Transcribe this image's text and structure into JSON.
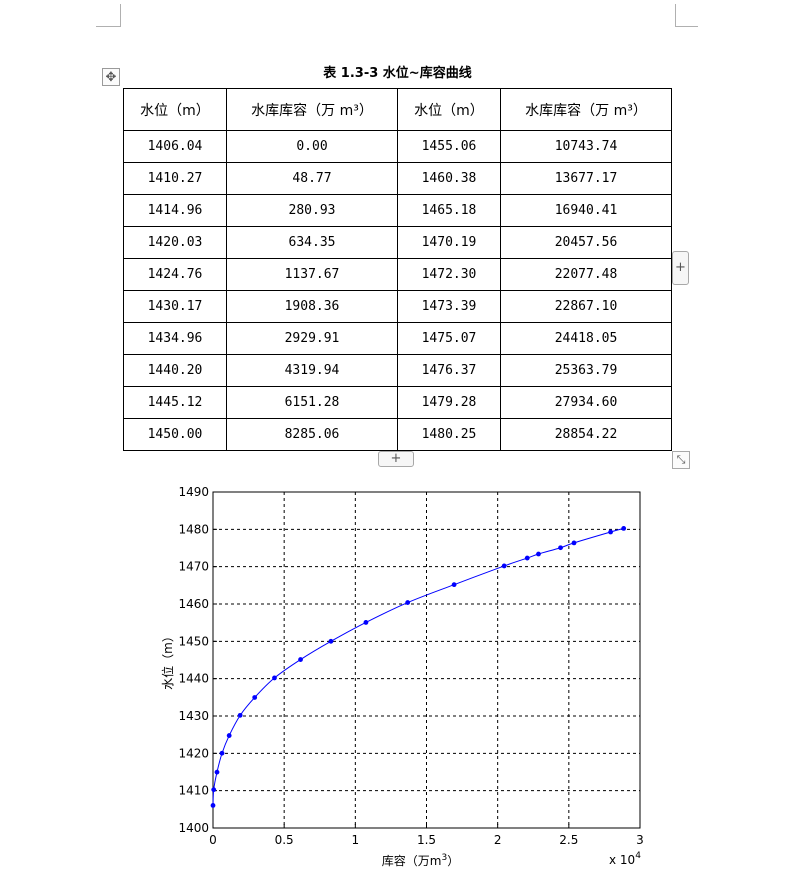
{
  "table": {
    "caption": "表 1.3-3  水位~库容曲线",
    "headers": [
      "水位（m）",
      "水库库容（万 m³）",
      "水位（m）",
      "水库库容（万 m³）"
    ],
    "rows": [
      [
        "1406.04",
        "0.00",
        "1455.06",
        "10743.74"
      ],
      [
        "1410.27",
        "48.77",
        "1460.38",
        "13677.17"
      ],
      [
        "1414.96",
        "280.93",
        "1465.18",
        "16940.41"
      ],
      [
        "1420.03",
        "634.35",
        "1470.19",
        "20457.56"
      ],
      [
        "1424.76",
        "1137.67",
        "1472.30",
        "22077.48"
      ],
      [
        "1430.17",
        "1908.36",
        "1473.39",
        "22867.10"
      ],
      [
        "1434.96",
        "2929.91",
        "1475.07",
        "24418.05"
      ],
      [
        "1440.20",
        "4319.94",
        "1476.37",
        "25363.79"
      ],
      [
        "1445.12",
        "6151.28",
        "1479.28",
        "27934.60"
      ],
      [
        "1450.00",
        "8285.06",
        "1480.25",
        "28854.22"
      ]
    ]
  },
  "controls": {
    "move_icon": "move-icon",
    "add_row_icon": "plus-icon",
    "add_column_icon": "plus-icon",
    "resize_icon": "resize-icon",
    "plus_glyph": "+",
    "move_glyph": "✥",
    "resize_glyph": "⤡"
  },
  "chart_data": {
    "type": "line",
    "xlabel": "库容（万m",
    "xlabel_sup": "3",
    "xlabel_end": "）",
    "ylabel": "水位（m）",
    "x_multiplier_base": "x 10",
    "x_multiplier_exp": "4",
    "xlim": [
      0,
      3
    ],
    "ylim": [
      1400,
      1490
    ],
    "xticks": [
      "0",
      "0.5",
      "1",
      "1.5",
      "2",
      "2.5",
      "3"
    ],
    "yticks": [
      "1400",
      "1410",
      "1420",
      "1430",
      "1440",
      "1450",
      "1460",
      "1470",
      "1480",
      "1490"
    ],
    "grid": true,
    "line_color": "#0000ff",
    "marker": "dot",
    "x": [
      0.0,
      0.004877,
      0.028093,
      0.063435,
      0.113767,
      0.190836,
      0.292991,
      0.431994,
      0.615128,
      0.828506,
      1.074374,
      1.367717,
      1.694041,
      2.045756,
      2.207748,
      2.28671,
      2.441805,
      2.536379,
      2.79346,
      2.885422
    ],
    "y": [
      1406.04,
      1410.27,
      1414.96,
      1420.03,
      1424.76,
      1430.17,
      1434.96,
      1440.2,
      1445.12,
      1450.0,
      1455.06,
      1460.38,
      1465.18,
      1470.19,
      1472.3,
      1473.39,
      1475.07,
      1476.37,
      1479.28,
      1480.25
    ]
  }
}
